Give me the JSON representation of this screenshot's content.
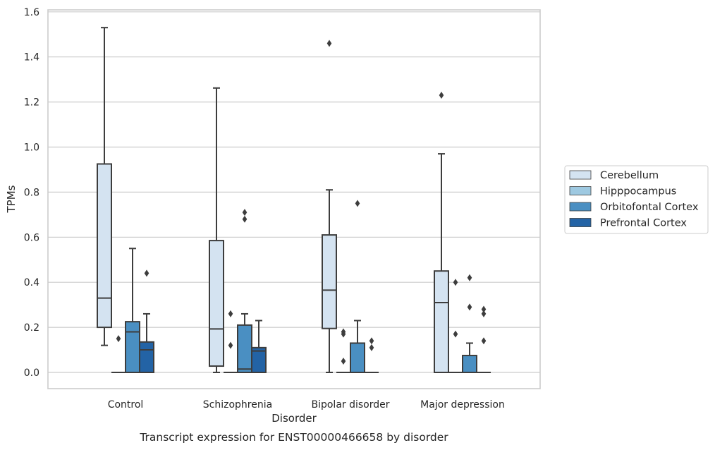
{
  "chart_data": {
    "type": "box",
    "xlabel": "Disorder",
    "ylabel": "TPMs",
    "caption": "Transcript expression for ENST00000466658 by disorder",
    "ylim": [
      -0.07,
      1.61
    ],
    "yticks": [
      0.0,
      0.2,
      0.4,
      0.6,
      0.8,
      1.0,
      1.2,
      1.4,
      1.6
    ],
    "ytick_labels": [
      "0.0",
      "0.2",
      "0.4",
      "0.6",
      "0.8",
      "1.0",
      "1.2",
      "1.4",
      "1.6"
    ],
    "grid": true,
    "legend_position": "right",
    "categories": [
      "Control",
      "Schizophrenia",
      "Bipolar disorder",
      "Major depression"
    ],
    "series": [
      {
        "name": "Cerebellum",
        "color": "#d4e3f1",
        "boxes": [
          {
            "whislo": 0.12,
            "q1": 0.2,
            "med": 0.33,
            "q3": 0.925,
            "whishi": 1.53,
            "fliers": []
          },
          {
            "whislo": 0.0,
            "q1": 0.028,
            "med": 0.193,
            "q3": 0.585,
            "whishi": 1.262,
            "fliers": []
          },
          {
            "whislo": 0.0,
            "q1": 0.195,
            "med": 0.365,
            "q3": 0.61,
            "whishi": 0.81,
            "fliers": [
              1.46
            ]
          },
          {
            "whislo": 0.0,
            "q1": 0.0,
            "med": 0.31,
            "q3": 0.45,
            "whishi": 0.97,
            "fliers": [
              1.23
            ]
          }
        ]
      },
      {
        "name": "Hipppocampus",
        "color": "#9ec9e1",
        "boxes": [
          {
            "whislo": 0.0,
            "q1": 0.0,
            "med": 0.0,
            "q3": 0.0,
            "whishi": 0.0,
            "fliers": [
              0.15
            ]
          },
          {
            "whislo": 0.0,
            "q1": 0.0,
            "med": 0.0,
            "q3": 0.0,
            "whishi": 0.0,
            "fliers": [
              0.26,
              0.12
            ]
          },
          {
            "whislo": 0.0,
            "q1": 0.0,
            "med": 0.0,
            "q3": 0.0,
            "whishi": 0.0,
            "fliers": [
              0.18,
              0.17,
              0.05
            ]
          },
          {
            "whislo": 0.0,
            "q1": 0.0,
            "med": 0.0,
            "q3": 0.0,
            "whishi": 0.0,
            "fliers": [
              0.4,
              0.17
            ]
          }
        ]
      },
      {
        "name": "Orbitofontal Cortex",
        "color": "#4a8fc2",
        "boxes": [
          {
            "whislo": 0.0,
            "q1": 0.0,
            "med": 0.18,
            "q3": 0.225,
            "whishi": 0.55,
            "fliers": []
          },
          {
            "whislo": 0.0,
            "q1": 0.0,
            "med": 0.015,
            "q3": 0.21,
            "whishi": 0.26,
            "fliers": [
              0.71,
              0.68
            ]
          },
          {
            "whislo": 0.0,
            "q1": 0.0,
            "med": 0.0,
            "q3": 0.13,
            "whishi": 0.23,
            "fliers": [
              0.75
            ]
          },
          {
            "whislo": 0.0,
            "q1": 0.0,
            "med": 0.0,
            "q3": 0.075,
            "whishi": 0.13,
            "fliers": [
              0.42,
              0.29
            ]
          }
        ]
      },
      {
        "name": "Prefrontal Cortex",
        "color": "#2363a5",
        "boxes": [
          {
            "whislo": 0.0,
            "q1": 0.0,
            "med": 0.1,
            "q3": 0.135,
            "whishi": 0.26,
            "fliers": [
              0.44
            ]
          },
          {
            "whislo": 0.0,
            "q1": 0.0,
            "med": 0.095,
            "q3": 0.11,
            "whishi": 0.23,
            "fliers": []
          },
          {
            "whislo": 0.0,
            "q1": 0.0,
            "med": 0.0,
            "q3": 0.0,
            "whishi": 0.0,
            "fliers": [
              0.14,
              0.11
            ]
          },
          {
            "whislo": 0.0,
            "q1": 0.0,
            "med": 0.0,
            "q3": 0.0,
            "whishi": 0.0,
            "fliers": [
              0.28,
              0.26,
              0.14
            ]
          }
        ]
      }
    ]
  }
}
